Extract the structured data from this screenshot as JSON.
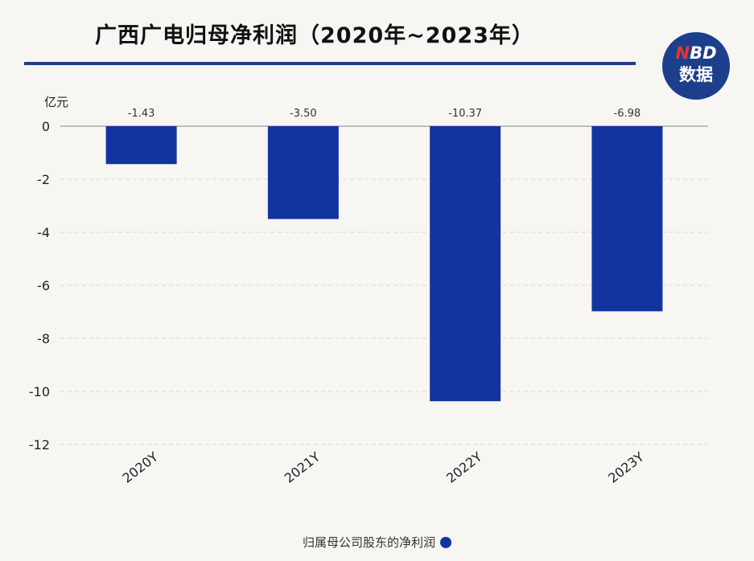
{
  "title": "广西广电归母净利润（2020年~2023年）",
  "logo": {
    "brand_n": "N",
    "brand_rest": "BD",
    "brand_cn": "数据"
  },
  "colors": {
    "bar": "#1134a0",
    "accent": "#1c3f8c",
    "grid": "#d8d8d8"
  },
  "chart_data": {
    "type": "bar",
    "unit_label": "亿元",
    "categories": [
      "2020Y",
      "2021Y",
      "2022Y",
      "2023Y"
    ],
    "series": [
      {
        "name": "归属母公司股东的净利润",
        "values": [
          -1.43,
          -3.5,
          -10.37,
          -6.98
        ]
      }
    ],
    "data_labels": [
      "-1.43",
      "-3.50",
      "-10.37",
      "-6.98"
    ],
    "ylim": [
      -12,
      0
    ],
    "yticks": [
      0,
      -2,
      -4,
      -6,
      -8,
      -10,
      -12
    ],
    "grid": true,
    "legend_position": "bottom-center"
  }
}
